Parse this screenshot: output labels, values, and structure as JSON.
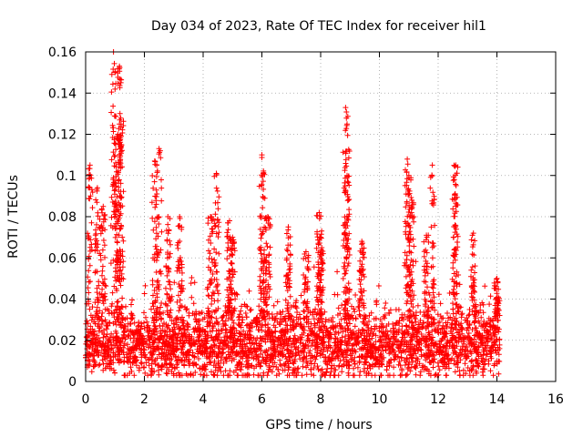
{
  "chart_data": {
    "type": "scatter",
    "title": "Day 034 of 2023, Rate Of TEC Index for receiver hil1",
    "xlabel": "GPS time / hours",
    "ylabel": "ROTI / TECUs",
    "xlim": [
      0,
      16
    ],
    "ylim": [
      0,
      0.16
    ],
    "xticks": [
      0,
      2,
      4,
      6,
      8,
      10,
      12,
      14,
      16
    ],
    "xtick_labels": [
      "0",
      "2",
      "4",
      "6",
      "8",
      "10",
      "12",
      "14",
      "16"
    ],
    "yticks": [
      0,
      0.02,
      0.04,
      0.06,
      0.08,
      0.1,
      0.12,
      0.14,
      0.16
    ],
    "ytick_labels": [
      "0",
      "0.02",
      "0.04",
      "0.06",
      "0.08",
      "0.1",
      "0.12",
      "0.14",
      "0.16"
    ],
    "grid": true,
    "marker": "+",
    "marker_color": "#ff0000",
    "series": [
      {
        "name": "hil1 ROTI",
        "x_range": [
          0,
          14.1
        ],
        "baseline_mean": 0.018,
        "peaks": [
          {
            "x": 0.15,
            "y": 0.105
          },
          {
            "x": 0.4,
            "y": 0.094
          },
          {
            "x": 0.6,
            "y": 0.085
          },
          {
            "x": 0.95,
            "y": 0.16
          },
          {
            "x": 1.0,
            "y": 0.15
          },
          {
            "x": 1.15,
            "y": 0.153
          },
          {
            "x": 1.2,
            "y": 0.145
          },
          {
            "x": 1.1,
            "y": 0.12
          },
          {
            "x": 1.15,
            "y": 0.125
          },
          {
            "x": 2.5,
            "y": 0.113
          },
          {
            "x": 2.35,
            "y": 0.107
          },
          {
            "x": 2.8,
            "y": 0.08
          },
          {
            "x": 3.2,
            "y": 0.08
          },
          {
            "x": 4.45,
            "y": 0.101
          },
          {
            "x": 4.25,
            "y": 0.08
          },
          {
            "x": 4.9,
            "y": 0.078
          },
          {
            "x": 5.0,
            "y": 0.07
          },
          {
            "x": 6.0,
            "y": 0.11
          },
          {
            "x": 6.05,
            "y": 0.101
          },
          {
            "x": 6.2,
            "y": 0.08
          },
          {
            "x": 6.9,
            "y": 0.075
          },
          {
            "x": 7.5,
            "y": 0.063
          },
          {
            "x": 7.95,
            "y": 0.082
          },
          {
            "x": 8.0,
            "y": 0.07
          },
          {
            "x": 8.85,
            "y": 0.133
          },
          {
            "x": 8.9,
            "y": 0.125
          },
          {
            "x": 8.9,
            "y": 0.1
          },
          {
            "x": 9.4,
            "y": 0.068
          },
          {
            "x": 10.95,
            "y": 0.108
          },
          {
            "x": 11.0,
            "y": 0.1
          },
          {
            "x": 11.1,
            "y": 0.088
          },
          {
            "x": 11.6,
            "y": 0.071
          },
          {
            "x": 11.8,
            "y": 0.105
          },
          {
            "x": 12.6,
            "y": 0.105
          },
          {
            "x": 12.55,
            "y": 0.098
          },
          {
            "x": 13.2,
            "y": 0.072
          },
          {
            "x": 14.0,
            "y": 0.05
          }
        ]
      }
    ]
  }
}
